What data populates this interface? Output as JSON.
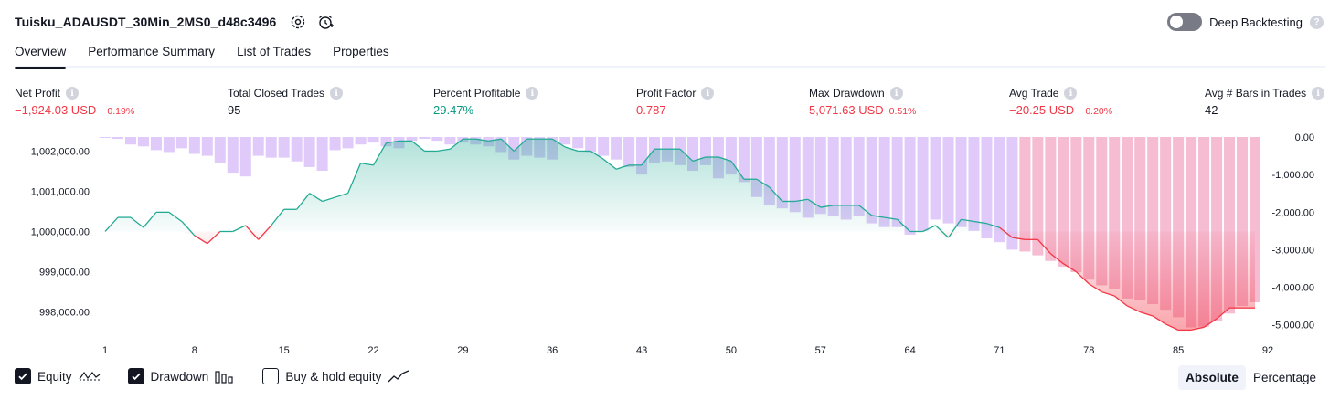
{
  "header": {
    "strategy_name": "Tuisku_ADAUSDT_30Min_2MS0_d48c3496",
    "settings_icon": "gear-icon",
    "alert_icon": "alarm-add-icon",
    "deep_backtesting_label": "Deep Backtesting",
    "deep_backtesting_enabled": false,
    "help_icon": "?"
  },
  "tabs": [
    {
      "label": "Overview",
      "active": true
    },
    {
      "label": "Performance Summary",
      "active": false
    },
    {
      "label": "List of Trades",
      "active": false
    },
    {
      "label": "Properties",
      "active": false
    }
  ],
  "metrics": [
    {
      "label": "Net Profit",
      "value": "−1,924.03 USD",
      "sub": "−0.19%",
      "tone": "neg"
    },
    {
      "label": "Total Closed Trades",
      "value": "95",
      "sub": "",
      "tone": "neutral"
    },
    {
      "label": "Percent Profitable",
      "value": "29.47%",
      "sub": "",
      "tone": "pos"
    },
    {
      "label": "Profit Factor",
      "value": "0.787",
      "sub": "",
      "tone": "neg"
    },
    {
      "label": "Max Drawdown",
      "value": "5,071.63 USD",
      "sub": "0.51%",
      "tone": "neg"
    },
    {
      "label": "Avg Trade",
      "value": "−20.25 USD",
      "sub": "−0.20%",
      "tone": "neg"
    },
    {
      "label": "Avg # Bars in Trades",
      "value": "42",
      "sub": "",
      "tone": "neutral"
    }
  ],
  "info_icon": "i",
  "colors": {
    "equity_line_up": "#22ab94",
    "equity_line_down": "#f23645",
    "equity_fill_up": "#cdeee6",
    "equity_fill_down": "#fbc5cd",
    "drawdown_bar": "#d6b8f7",
    "drawdown_bar_deep": "#ee8fb4",
    "overlap": "#a7a9d9",
    "text": "#131722"
  },
  "chart_data": {
    "type": "area",
    "x_axis_ticks": [
      "1",
      "8",
      "15",
      "22",
      "29",
      "36",
      "43",
      "50",
      "57",
      "64",
      "71",
      "78",
      "85",
      "92"
    ],
    "left_axis": {
      "ticks": [
        "1,002,000.00",
        "1,001,000.00",
        "1,000,000.00",
        "999,000.00",
        "998,000.00"
      ],
      "tick_values": [
        1002000,
        1001000,
        1000000,
        999000,
        998000
      ],
      "range": [
        997400,
        1002350
      ]
    },
    "right_axis": {
      "ticks": [
        "0.00",
        "-1,000.00",
        "-2,000.00",
        "-3,000.00",
        "-4,000.00",
        "-5,000.00"
      ],
      "tick_values": [
        0,
        -1000,
        -2000,
        -3000,
        -4000,
        -5000
      ],
      "range": [
        -5300,
        0
      ]
    },
    "baseline": 1000000,
    "series": [
      {
        "name": "Equity",
        "axis": "left",
        "values": [
          1000000,
          1000350,
          1000350,
          1000100,
          1000480,
          1000480,
          1000250,
          999900,
          999700,
          1000000,
          1000000,
          1000150,
          999800,
          1000150,
          1000550,
          1000550,
          1000950,
          1000750,
          1000850,
          1000950,
          1001700,
          1001650,
          1002200,
          1002250,
          1002250,
          1002000,
          1002000,
          1002050,
          1002300,
          1002300,
          1002250,
          1002300,
          1002000,
          1002300,
          1002300,
          1002300,
          1002100,
          1002000,
          1002000,
          1001800,
          1001550,
          1001650,
          1001650,
          1002050,
          1002050,
          1002050,
          1001750,
          1001850,
          1001850,
          1001750,
          1001300,
          1001300,
          1001100,
          1000750,
          1000750,
          1000800,
          1000600,
          1000650,
          1000650,
          1000650,
          1000400,
          1000350,
          1000300,
          1000000,
          1000000,
          1000150,
          999850,
          1000300,
          1000250,
          1000200,
          1000100,
          999850,
          999800,
          999800,
          999450,
          999200,
          999000,
          998700,
          998500,
          998400,
          998150,
          998000,
          997900,
          997700,
          997550,
          997550,
          997620,
          997830,
          998100,
          998100,
          998100
        ]
      },
      {
        "name": "Drawdown",
        "axis": "right",
        "values": [
          -20,
          -50,
          -200,
          -250,
          -350,
          -400,
          -300,
          -450,
          -500,
          -700,
          -950,
          -1050,
          -500,
          -550,
          -550,
          -650,
          -800,
          -900,
          -350,
          -300,
          -200,
          -150,
          -250,
          -300,
          -100,
          -50,
          -100,
          -200,
          -150,
          -200,
          -250,
          -400,
          -600,
          -500,
          -550,
          -600,
          -200,
          -300,
          -400,
          -500,
          -600,
          -800,
          -1000,
          -700,
          -650,
          -750,
          -900,
          -750,
          -1100,
          -1000,
          -1200,
          -1600,
          -1800,
          -1900,
          -2000,
          -2150,
          -2050,
          -2100,
          -2200,
          -2100,
          -2300,
          -2400,
          -2400,
          -2600,
          -2500,
          -2200,
          -2300,
          -2400,
          -2500,
          -2700,
          -2800,
          -3000,
          -3050,
          -3150,
          -3300,
          -3450,
          -3600,
          -3800,
          -3950,
          -4050,
          -4300,
          -4350,
          -4450,
          -4600,
          -4800,
          -5071,
          -5050,
          -4900,
          -4700,
          -4500,
          -4400
        ]
      }
    ],
    "legend": [
      {
        "label": "Equity",
        "checked": true,
        "icon": "equity-line-icon"
      },
      {
        "label": "Drawdown",
        "checked": true,
        "icon": "drawdown-bars-icon"
      },
      {
        "label": "Buy & hold equity",
        "checked": false,
        "icon": "buy-hold-line-icon"
      }
    ]
  },
  "footer": {
    "mode_absolute": "Absolute",
    "mode_percentage": "Percentage",
    "mode_selected": "Absolute"
  }
}
